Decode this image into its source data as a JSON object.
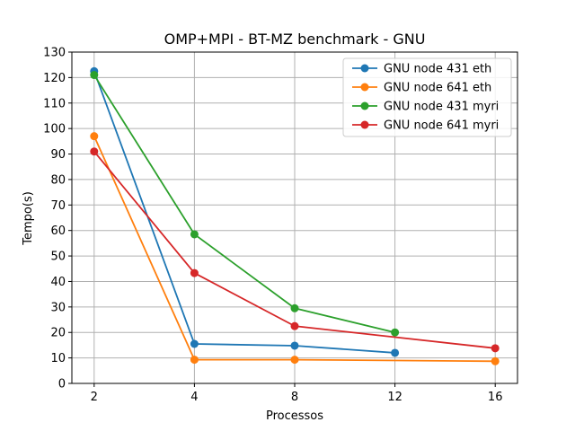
{
  "chart_data": {
    "type": "line",
    "title": "OMP+MPI - BT-MZ benchmark - GNU",
    "xlabel": "Processos",
    "ylabel": "Tempo(s)",
    "x_ticks": [
      2,
      4,
      8,
      12,
      16
    ],
    "ylim": [
      0,
      130
    ],
    "y_ticks": [
      0,
      10,
      20,
      30,
      40,
      50,
      60,
      70,
      80,
      90,
      100,
      110,
      120,
      130
    ],
    "grid": true,
    "legend_position": "top-right",
    "series": [
      {
        "name": "GNU node 431 eth",
        "color": "#1f77b4",
        "points": [
          [
            2,
            122.5
          ],
          [
            4,
            15.5
          ],
          [
            8,
            14.8
          ],
          [
            12,
            12.0
          ]
        ]
      },
      {
        "name": "GNU node 641 eth",
        "color": "#ff7f0e",
        "points": [
          [
            2,
            97.0
          ],
          [
            4,
            9.3
          ],
          [
            8,
            9.3
          ],
          [
            16,
            8.7
          ]
        ]
      },
      {
        "name": "GNU node 431 myri",
        "color": "#2ca02c",
        "points": [
          [
            2,
            121.0
          ],
          [
            4,
            58.5
          ],
          [
            8,
            29.5
          ],
          [
            12,
            20.0
          ]
        ]
      },
      {
        "name": "GNU node 641 myri",
        "color": "#d62728",
        "points": [
          [
            2,
            91.0
          ],
          [
            4,
            43.3
          ],
          [
            8,
            22.5
          ],
          [
            16,
            13.8
          ]
        ]
      }
    ]
  }
}
